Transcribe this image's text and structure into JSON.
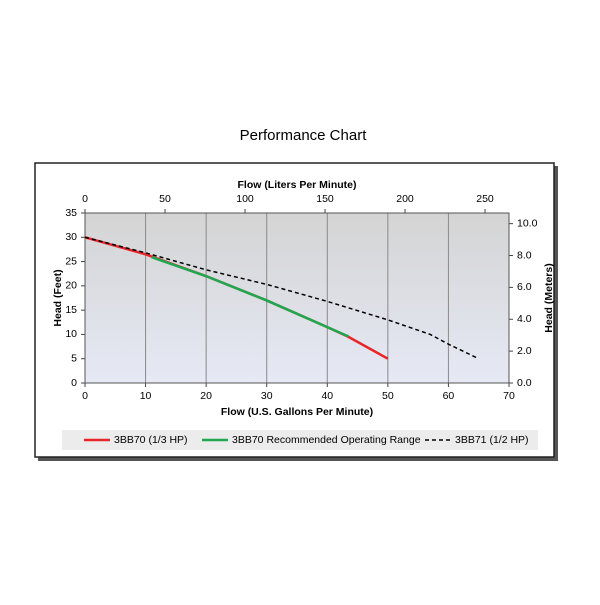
{
  "chart_data": {
    "type": "line",
    "title": "Performance Chart",
    "xlabel": "Flow (U.S. Gallons Per Minute)",
    "ylabel": "Head (Feet)",
    "x2label": "Flow (Liters Per Minute)",
    "y2label": "Head (Meters)",
    "xlim": [
      0,
      70
    ],
    "xticks": [
      0,
      10,
      20,
      30,
      40,
      50,
      60,
      70
    ],
    "ylim": [
      0,
      35
    ],
    "yticks": [
      0,
      5,
      10,
      15,
      20,
      25,
      30,
      35
    ],
    "x2lim": [
      0,
      265
    ],
    "x2ticks": [
      0,
      50,
      100,
      150,
      200,
      250
    ],
    "y2lim": [
      0,
      10.668
    ],
    "y2ticks": [
      {
        "value": 0,
        "label": "0.0"
      },
      {
        "value": 2,
        "label": "2.0"
      },
      {
        "value": 4,
        "label": "4.0"
      },
      {
        "value": 6,
        "label": "6.0"
      },
      {
        "value": 8,
        "label": "8.0"
      },
      {
        "value": 10,
        "label": "10.0"
      }
    ],
    "grid": true,
    "series": [
      {
        "name": "3BB70 (1/3 HP)",
        "color": "#e8262a",
        "dash": false,
        "x": [
          0,
          10,
          20,
          30,
          40,
          43.5,
          50
        ],
        "values": [
          30,
          26.5,
          22,
          17,
          11.5,
          9.5,
          5
        ]
      },
      {
        "name": "3BB70 Recommended Operating Range",
        "color": "#1fa84f",
        "dash": false,
        "x": [
          11,
          20,
          30,
          40,
          43.5
        ],
        "values": [
          25.9,
          22,
          17,
          11.5,
          9.6
        ]
      },
      {
        "name": "3BB71 (1/2 HP)",
        "color": "#000000",
        "dash": true,
        "x": [
          0,
          10,
          20,
          30,
          40,
          50,
          57,
          60,
          65
        ],
        "values": [
          30,
          26.8,
          23.3,
          20.3,
          16.8,
          13,
          10,
          8,
          5
        ]
      }
    ]
  }
}
